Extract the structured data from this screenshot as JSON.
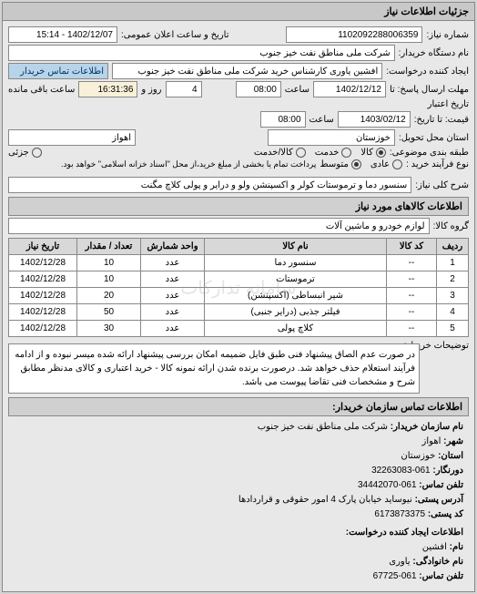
{
  "colors": {
    "bg": "#d4d4d4",
    "panel": "#e8e8e8",
    "field_blue": "#b8d4e8",
    "field_cream": "#f8f0d8"
  },
  "header": {
    "title": "جزئیات اطلاعات نیاز"
  },
  "info": {
    "req_number_label": "شماره نیاز:",
    "req_number": "1102092288006359",
    "announce_label": "تاریخ و ساعت اعلان عمومی:",
    "announce_value": "1402/12/07 - 15:14",
    "buyer_name_label": "نام دستگاه خریدار:",
    "buyer_name": "شرکت ملی مناطق نفت خیز جنوب",
    "requester_label": "ایجاد کننده درخواست:",
    "requester": "افشین  یاوری  کارشناس خرید  شرکت ملی مناطق نفت خیز جنوب",
    "buyer_contact_btn": "اطلاعات تماس خریدار",
    "deadline_label": "مهلت ارسال پاسخ: تا",
    "deadline_date": "1402/12/12",
    "time_label": "ساعت",
    "deadline_time": "08:00",
    "day_count": "4",
    "day_label": "روز و",
    "remaining_time": "16:31:36",
    "remaining_label": "ساعت باقی مانده",
    "validity_label": "تاریخ اعتبار",
    "quote_label": "قیمت: تا تاریخ:",
    "validity_date": "1403/02/12",
    "validity_time": "08:00",
    "province_label": "استان محل تحویل:",
    "province": "خوزستان",
    "city_label": "",
    "city": "اهواز",
    "group_label": "طبقه بندی موضوعی:",
    "group_opts": [
      "کالا",
      "خدمت",
      "کالا/خدمت"
    ],
    "group_selected": 0,
    "process_label": "نوع فرآیند خرید :",
    "process_opts": [
      "عادی",
      "متوسط"
    ],
    "process_selected": 1,
    "process_note": "پرداخت تمام یا بخشی از مبلغ خرید،از محل \"اسناد خزانه اسلامی\" خواهد بود.",
    "jozei_label": "جزئی"
  },
  "need": {
    "title_label": "شرح کلی نیاز:",
    "title_value": "سنسور دما و ترموستات کولر و اکسپنشن ولو و درایر و پولی کلاچ مگنت"
  },
  "goods": {
    "section": "اطلاعات کالاهای مورد نیاز",
    "group_label": "گروه کالا:",
    "group_value": "لوازم خودرو و ماشین آلات",
    "watermark": "سامانه تدارکات",
    "columns": [
      "ردیف",
      "کد کالا",
      "نام کالا",
      "واحد شمارش",
      "تعداد / مقدار",
      "تاریخ نیاز"
    ],
    "rows": [
      [
        "1",
        "--",
        "سنسور دما",
        "عدد",
        "10",
        "1402/12/28"
      ],
      [
        "2",
        "--",
        "ترموستات",
        "عدد",
        "10",
        "1402/12/28"
      ],
      [
        "3",
        "--",
        "شیر انبساطی (اکسپنشن)",
        "عدد",
        "20",
        "1402/12/28"
      ],
      [
        "4",
        "--",
        "فیلتر جذبی (درایر جنبی)",
        "عدد",
        "50",
        "1402/12/28"
      ],
      [
        "5",
        "--",
        "کلاچ پولی",
        "عدد",
        "30",
        "1402/12/28"
      ]
    ],
    "note_label": "توضیحات خریدار:",
    "note_text": "در صورت عدم الصاق پیشنهاد فنی طبق فایل ضمیمه امکان بررسی پیشنهاد ارائه شده میسر نبوده و از ادامه فرآیند استعلام حذف خواهد شد. درصورت برنده شدن ارائه نمونه کالا - خرید اعتباری و کالای مدنظر مطابق شرح و مشخصات فنی تقاضا پیوست می باشد."
  },
  "contact": {
    "section": "اطلاعات تماس سازمان خریدار:",
    "org_label": "نام سازمان خریدار:",
    "org_value": "شرکت ملی مناطق نفت خیز جنوب",
    "city_label": "شهر:",
    "city_value": "اهواز",
    "prov_label": "استان:",
    "prov_value": "خوزستان",
    "fax_label": "دورنگار:",
    "fax_value": "061-32263083",
    "tel_label": "تلفن تماس:",
    "tel_value": "061-34442070",
    "addr_label": "آدرس پستی:",
    "addr_value": "نیوساید خیابان پارک 4 امور حقوقی و قراردادها",
    "post_label": "کد پستی:",
    "post_value": "6173873375",
    "req_section": "اطلاعات ایجاد کننده درخواست:",
    "fname_label": "نام:",
    "fname_value": "افشین",
    "lname_label": "نام خانوادگی:",
    "lname_value": "یاوری",
    "rtel_label": "تلفن تماس:",
    "rtel_value": "061-67725"
  }
}
